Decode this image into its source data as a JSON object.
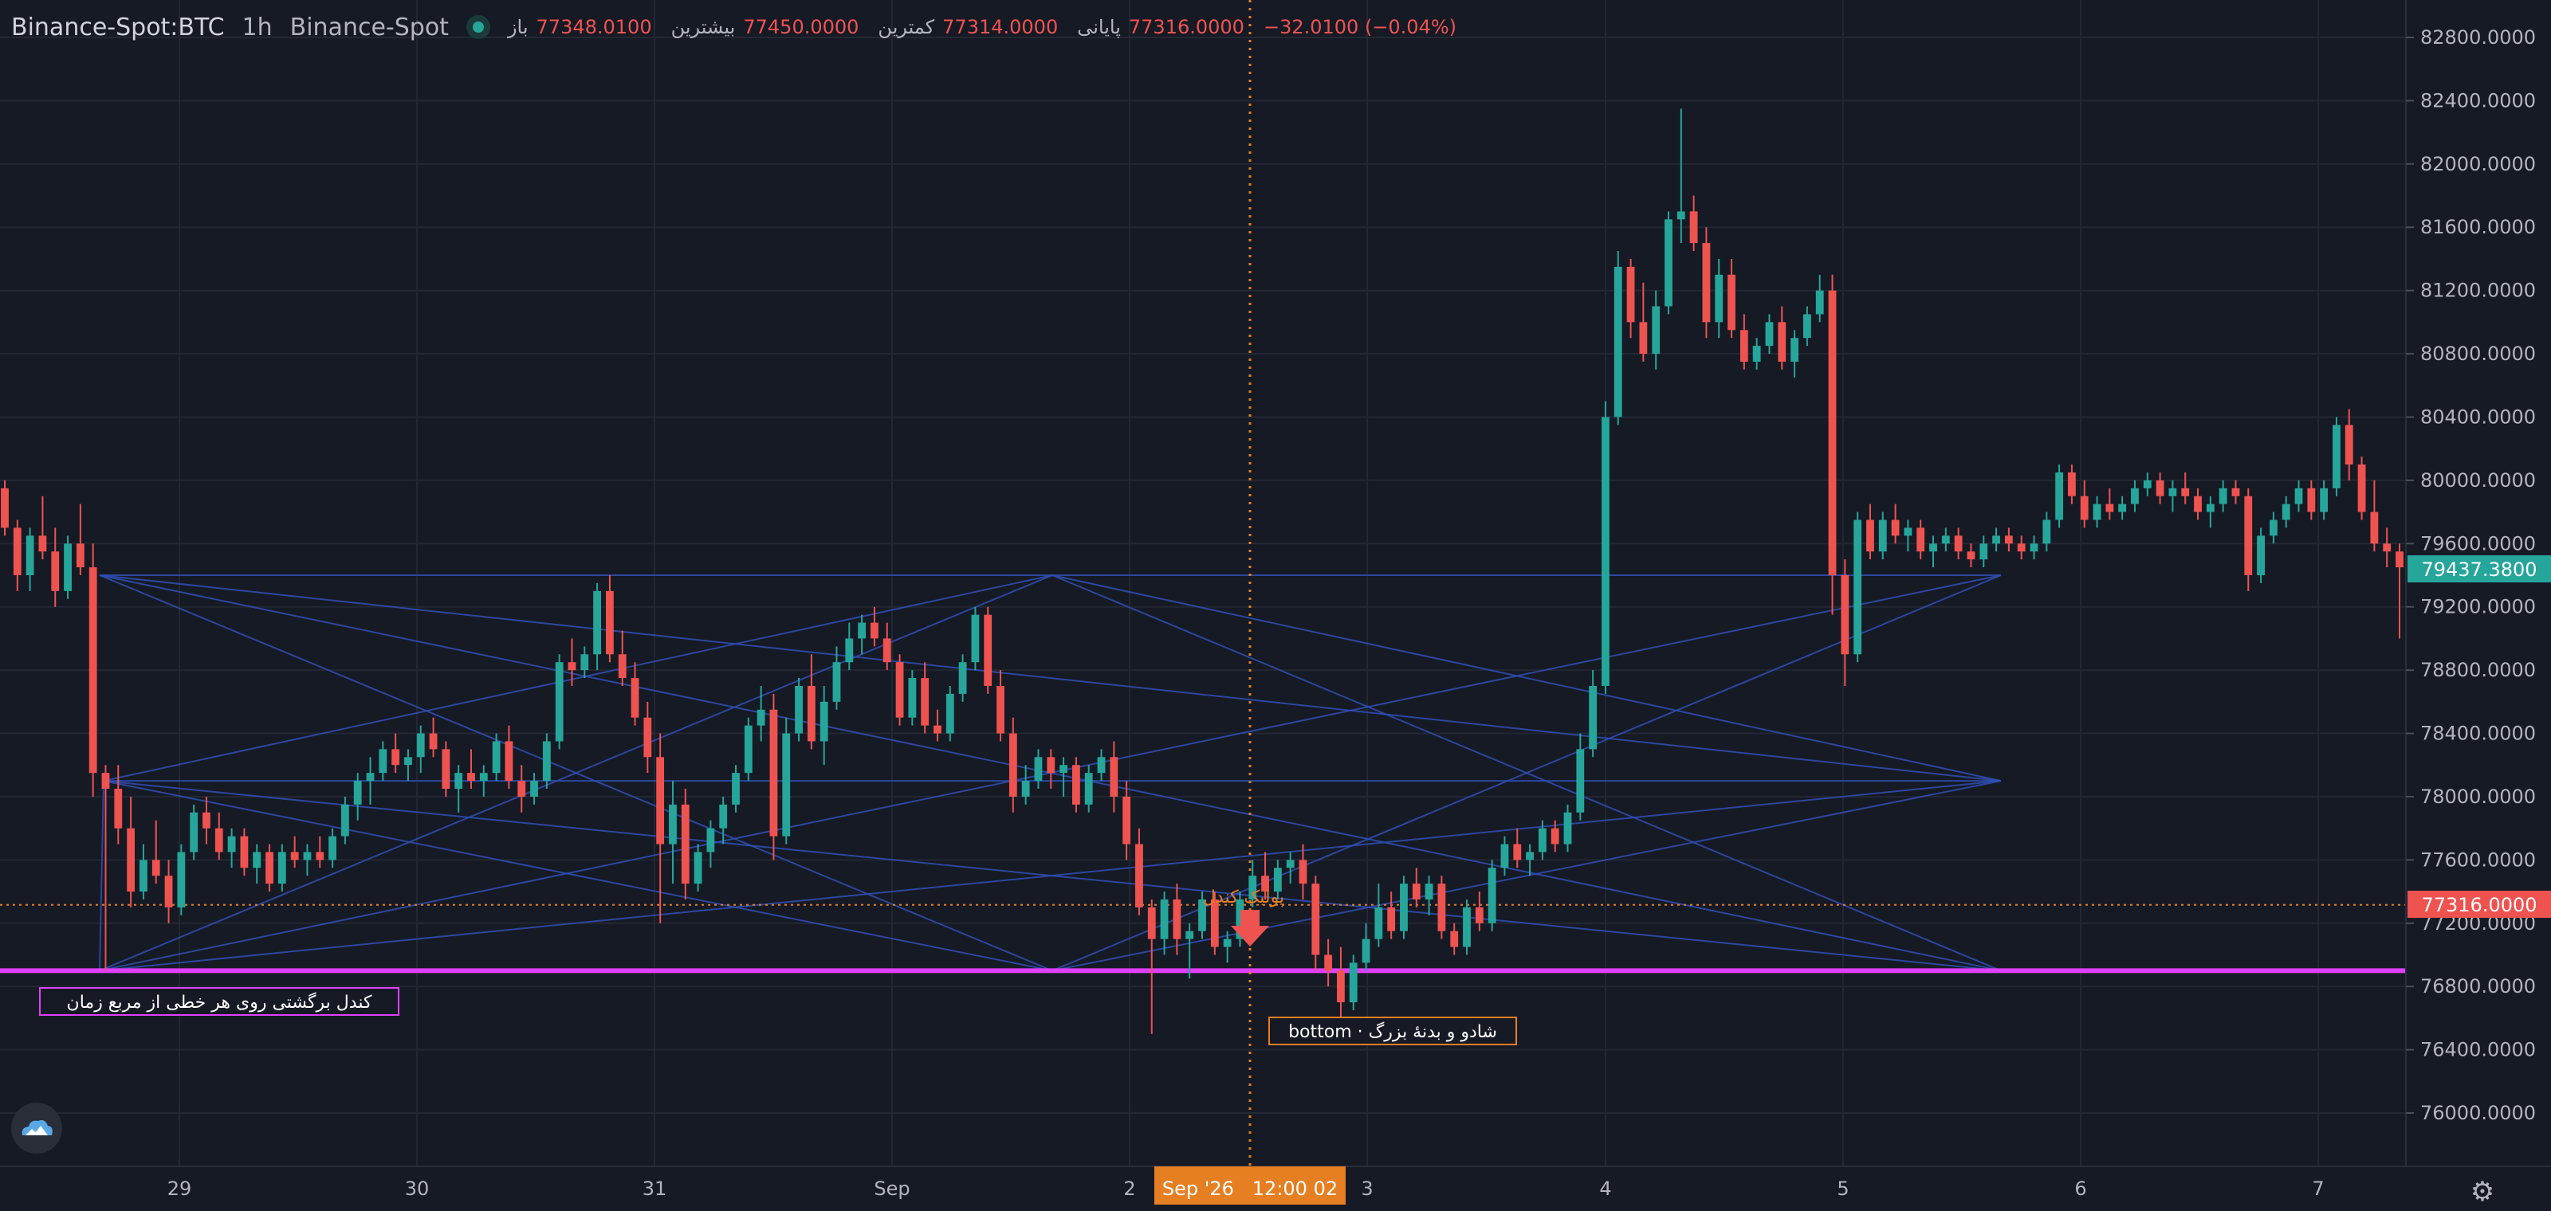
{
  "header": {
    "symbol": "Binance-Spot:BTC",
    "interval": "1h",
    "exchange": "Binance-Spot",
    "ohlc": {
      "open_label": "باز",
      "open": "77348.0100",
      "high_label": "بیشترین",
      "high": "77450.0000",
      "low_label": "کمترین",
      "low": "77314.0000",
      "close_label": "پایانی",
      "close": "77316.0000",
      "change": "−32.0100 (−0.04%)"
    }
  },
  "colors": {
    "background": "#161a25",
    "grid": "#232733",
    "up": "#26a69a",
    "down": "#ef5350",
    "pattern_lines": "#2f4fb4",
    "support_line": "#e040fb",
    "crosshair": "#e67e22",
    "axis_text": "#b2b5be"
  },
  "price_axis": {
    "labels": [
      "82800.0000",
      "82400.0000",
      "82000.0000",
      "81600.0000",
      "81200.0000",
      "80800.0000",
      "80400.0000",
      "80000.0000",
      "79600.0000",
      "79200.0000",
      "78800.0000",
      "78400.0000",
      "78000.0000",
      "77600.0000",
      "77200.0000",
      "76800.0000",
      "76400.0000",
      "76000.0000"
    ],
    "last_price_label": "79437.3800",
    "crosshair_price_label": "77316.0000"
  },
  "time_axis": {
    "labels": [
      "29",
      "30",
      "31",
      "Sep",
      "2",
      "3",
      "4",
      "5",
      "6",
      "7"
    ],
    "crosshair_label": "Sep '26   12:00 02"
  },
  "annotations": {
    "support_label": "کندل برگشتی روی هر خطی از مربع زمان",
    "bottom_label": "bottom · شادو و بدنهٔ بزرگ",
    "marker_text": "پولبک کندل"
  },
  "icons": {
    "logo": "cloud-mountain-logo-icon",
    "settings": "gear-icon",
    "signal": "down-arrow-marker-icon"
  },
  "chart_data": {
    "type": "candlestick",
    "title": "",
    "y_range": [
      75700,
      83000
    ],
    "x_ticks": [
      "29",
      "30",
      "31",
      "Sep",
      "2",
      "3",
      "4",
      "5",
      "6",
      "7"
    ],
    "support_level": 76900,
    "crosshair_price": 77316,
    "last_price": 79437.38,
    "candles_ohlc": [
      [
        79950,
        80000,
        79650,
        79700
      ],
      [
        79700,
        79750,
        79300,
        79400
      ],
      [
        79400,
        79700,
        79300,
        79650
      ],
      [
        79650,
        79900,
        79500,
        79550
      ],
      [
        79550,
        79700,
        79200,
        79300
      ],
      [
        79300,
        79650,
        79250,
        79600
      ],
      [
        79600,
        79850,
        79400,
        79450
      ],
      [
        79450,
        79600,
        78000,
        78150
      ],
      [
        78150,
        78200,
        76900,
        78050
      ],
      [
        78050,
        78200,
        77700,
        77800
      ],
      [
        77800,
        78000,
        77300,
        77400
      ],
      [
        77400,
        77700,
        77350,
        77600
      ],
      [
        77600,
        77850,
        77450,
        77500
      ],
      [
        77500,
        77600,
        77200,
        77300
      ],
      [
        77300,
        77700,
        77250,
        77650
      ],
      [
        77650,
        77950,
        77600,
        77900
      ],
      [
        77900,
        78000,
        77700,
        77800
      ],
      [
        77800,
        77900,
        77600,
        77650
      ],
      [
        77650,
        77800,
        77550,
        77750
      ],
      [
        77750,
        77800,
        77500,
        77550
      ],
      [
        77550,
        77700,
        77450,
        77650
      ],
      [
        77650,
        77700,
        77400,
        77450
      ],
      [
        77450,
        77700,
        77400,
        77650
      ],
      [
        77650,
        77750,
        77550,
        77600
      ],
      [
        77600,
        77700,
        77500,
        77650
      ],
      [
        77650,
        77750,
        77550,
        77600
      ],
      [
        77600,
        77800,
        77550,
        77750
      ],
      [
        77750,
        78000,
        77700,
        77950
      ],
      [
        77950,
        78150,
        77850,
        78100
      ],
      [
        78100,
        78250,
        77950,
        78150
      ],
      [
        78150,
        78350,
        78100,
        78300
      ],
      [
        78300,
        78400,
        78150,
        78200
      ],
      [
        78200,
        78300,
        78100,
        78250
      ],
      [
        78250,
        78450,
        78150,
        78400
      ],
      [
        78400,
        78500,
        78250,
        78300
      ],
      [
        78300,
        78350,
        78000,
        78050
      ],
      [
        78050,
        78200,
        77900,
        78150
      ],
      [
        78150,
        78300,
        78050,
        78100
      ],
      [
        78100,
        78200,
        78000,
        78150
      ],
      [
        78150,
        78400,
        78100,
        78350
      ],
      [
        78350,
        78450,
        78050,
        78100
      ],
      [
        78100,
        78200,
        77900,
        78000
      ],
      [
        78000,
        78150,
        77950,
        78100
      ],
      [
        78100,
        78400,
        78050,
        78350
      ],
      [
        78350,
        78900,
        78300,
        78850
      ],
      [
        78850,
        79000,
        78700,
        78800
      ],
      [
        78800,
        78950,
        78750,
        78900
      ],
      [
        78900,
        79350,
        78800,
        79300
      ],
      [
        79300,
        79400,
        78850,
        78900
      ],
      [
        78900,
        79050,
        78700,
        78750
      ],
      [
        78750,
        78850,
        78450,
        78500
      ],
      [
        78500,
        78600,
        78150,
        78250
      ],
      [
        78250,
        78400,
        77200,
        77700
      ],
      [
        77700,
        78100,
        77450,
        77950
      ],
      [
        77950,
        78050,
        77350,
        77450
      ],
      [
        77450,
        77700,
        77400,
        77650
      ],
      [
        77650,
        77850,
        77550,
        77800
      ],
      [
        77800,
        78000,
        77700,
        77950
      ],
      [
        77950,
        78200,
        77900,
        78150
      ],
      [
        78150,
        78500,
        78100,
        78450
      ],
      [
        78450,
        78700,
        78350,
        78550
      ],
      [
        78550,
        78650,
        77600,
        77750
      ],
      [
        77750,
        78500,
        77700,
        78400
      ],
      [
        78400,
        78750,
        78350,
        78700
      ],
      [
        78700,
        78900,
        78300,
        78350
      ],
      [
        78350,
        78700,
        78200,
        78600
      ],
      [
        78600,
        78950,
        78550,
        78850
      ],
      [
        78850,
        79100,
        78800,
        79000
      ],
      [
        79000,
        79150,
        78900,
        79100
      ],
      [
        79100,
        79200,
        78950,
        79000
      ],
      [
        79000,
        79100,
        78800,
        78850
      ],
      [
        78850,
        78900,
        78450,
        78500
      ],
      [
        78500,
        78800,
        78450,
        78750
      ],
      [
        78750,
        78850,
        78400,
        78450
      ],
      [
        78450,
        78550,
        78350,
        78400
      ],
      [
        78400,
        78700,
        78350,
        78650
      ],
      [
        78650,
        78900,
        78600,
        78850
      ],
      [
        78850,
        79200,
        78800,
        79150
      ],
      [
        79150,
        79200,
        78650,
        78700
      ],
      [
        78700,
        78800,
        78350,
        78400
      ],
      [
        78400,
        78500,
        77900,
        78000
      ],
      [
        78000,
        78200,
        77950,
        78100
      ],
      [
        78100,
        78300,
        78050,
        78250
      ],
      [
        78250,
        78300,
        78050,
        78150
      ],
      [
        78150,
        78250,
        78000,
        78200
      ],
      [
        78200,
        78250,
        77900,
        77950
      ],
      [
        77950,
        78200,
        77900,
        78150
      ],
      [
        78150,
        78300,
        78100,
        78250
      ],
      [
        78250,
        78350,
        77900,
        78000
      ],
      [
        78000,
        78100,
        77600,
        77700
      ],
      [
        77700,
        77800,
        77250,
        77300
      ],
      [
        77300,
        77350,
        76500,
        77100
      ],
      [
        77100,
        77400,
        77000,
        77350
      ],
      [
        77350,
        77450,
        77000,
        77100
      ],
      [
        77100,
        77200,
        76850,
        77150
      ],
      [
        77150,
        77400,
        77100,
        77350
      ],
      [
        77350,
        77400,
        77000,
        77050
      ],
      [
        77050,
        77150,
        76950,
        77100
      ],
      [
        77100,
        77400,
        77050,
        77350
      ],
      [
        77350,
        77600,
        77300,
        77500
      ],
      [
        77500,
        77650,
        77350,
        77400
      ],
      [
        77400,
        77600,
        77350,
        77550
      ],
      [
        77550,
        77650,
        77450,
        77600
      ],
      [
        77600,
        77700,
        77350,
        77450
      ],
      [
        77450,
        77500,
        76900,
        77000
      ],
      [
        77000,
        77100,
        76800,
        76900
      ],
      [
        76900,
        77050,
        76600,
        76700
      ],
      [
        76700,
        77000,
        76650,
        76950
      ],
      [
        76950,
        77200,
        76900,
        77100
      ],
      [
        77100,
        77450,
        77050,
        77300
      ],
      [
        77300,
        77400,
        77100,
        77150
      ],
      [
        77150,
        77500,
        77100,
        77450
      ],
      [
        77450,
        77550,
        77300,
        77350
      ],
      [
        77350,
        77500,
        77250,
        77450
      ],
      [
        77450,
        77500,
        77100,
        77150
      ],
      [
        77150,
        77200,
        77000,
        77050
      ],
      [
        77050,
        77350,
        77000,
        77300
      ],
      [
        77300,
        77400,
        77150,
        77200
      ],
      [
        77200,
        77600,
        77150,
        77550
      ],
      [
        77550,
        77750,
        77500,
        77700
      ],
      [
        77700,
        77800,
        77550,
        77600
      ],
      [
        77600,
        77700,
        77500,
        77650
      ],
      [
        77650,
        77850,
        77600,
        77800
      ],
      [
        77800,
        77850,
        77650,
        77700
      ],
      [
        77700,
        77950,
        77650,
        77900
      ],
      [
        77900,
        78400,
        77850,
        78300
      ],
      [
        78300,
        78800,
        78250,
        78700
      ],
      [
        78700,
        80500,
        78650,
        80400
      ],
      [
        80400,
        81450,
        80350,
        81350
      ],
      [
        81350,
        81400,
        80900,
        81000
      ],
      [
        81000,
        81250,
        80750,
        80800
      ],
      [
        80800,
        81200,
        80700,
        81100
      ],
      [
        81100,
        81700,
        81050,
        81650
      ],
      [
        81650,
        82350,
        81500,
        81700
      ],
      [
        81700,
        81800,
        81450,
        81500
      ],
      [
        81500,
        81600,
        80900,
        81000
      ],
      [
        81000,
        81400,
        80900,
        81300
      ],
      [
        81300,
        81400,
        80900,
        80950
      ],
      [
        80950,
        81050,
        80700,
        80750
      ],
      [
        80750,
        80900,
        80700,
        80850
      ],
      [
        80850,
        81050,
        80800,
        81000
      ],
      [
        81000,
        81100,
        80700,
        80750
      ],
      [
        80750,
        80950,
        80650,
        80900
      ],
      [
        80900,
        81100,
        80850,
        81050
      ],
      [
        81050,
        81300,
        81000,
        81200
      ],
      [
        81200,
        81300,
        79150,
        79400
      ],
      [
        79400,
        79500,
        78700,
        78900
      ],
      [
        78900,
        79800,
        78850,
        79750
      ],
      [
        79750,
        79850,
        79500,
        79550
      ],
      [
        79550,
        79800,
        79500,
        79750
      ],
      [
        79750,
        79850,
        79600,
        79650
      ],
      [
        79650,
        79750,
        79550,
        79700
      ],
      [
        79700,
        79750,
        79500,
        79550
      ],
      [
        79550,
        79650,
        79450,
        79600
      ],
      [
        79600,
        79700,
        79550,
        79650
      ],
      [
        79650,
        79700,
        79500,
        79550
      ],
      [
        79550,
        79600,
        79450,
        79500
      ],
      [
        79500,
        79650,
        79450,
        79600
      ],
      [
        79600,
        79700,
        79550,
        79650
      ],
      [
        79650,
        79700,
        79550,
        79600
      ],
      [
        79600,
        79650,
        79500,
        79550
      ],
      [
        79550,
        79650,
        79500,
        79600
      ],
      [
        79600,
        79800,
        79550,
        79750
      ],
      [
        79750,
        80100,
        79700,
        80050
      ],
      [
        80050,
        80100,
        79850,
        79900
      ],
      [
        79900,
        80000,
        79700,
        79750
      ],
      [
        79750,
        79900,
        79700,
        79850
      ],
      [
        79850,
        79950,
        79750,
        79800
      ],
      [
        79800,
        79900,
        79750,
        79850
      ],
      [
        79850,
        80000,
        79800,
        79950
      ],
      [
        79950,
        80050,
        79900,
        80000
      ],
      [
        80000,
        80050,
        79850,
        79900
      ],
      [
        79900,
        80000,
        79800,
        79950
      ],
      [
        79950,
        80050,
        79850,
        79900
      ],
      [
        79900,
        79950,
        79750,
        79800
      ],
      [
        79800,
        79900,
        79700,
        79850
      ],
      [
        79850,
        80000,
        79800,
        79950
      ],
      [
        79950,
        80000,
        79850,
        79900
      ],
      [
        79900,
        79950,
        79300,
        79400
      ],
      [
        79400,
        79700,
        79350,
        79650
      ],
      [
        79650,
        79800,
        79600,
        79750
      ],
      [
        79750,
        79900,
        79700,
        79850
      ],
      [
        79850,
        80000,
        79800,
        79950
      ],
      [
        79950,
        80000,
        79750,
        79800
      ],
      [
        79800,
        80000,
        79750,
        79950
      ],
      [
        79950,
        80400,
        79900,
        80350
      ],
      [
        80350,
        80450,
        80000,
        80100
      ],
      [
        80100,
        80150,
        79750,
        79800
      ],
      [
        79800,
        80000,
        79550,
        79600
      ],
      [
        79600,
        79700,
        79450,
        79550
      ],
      [
        79550,
        79600,
        79000,
        79450
      ]
    ]
  }
}
